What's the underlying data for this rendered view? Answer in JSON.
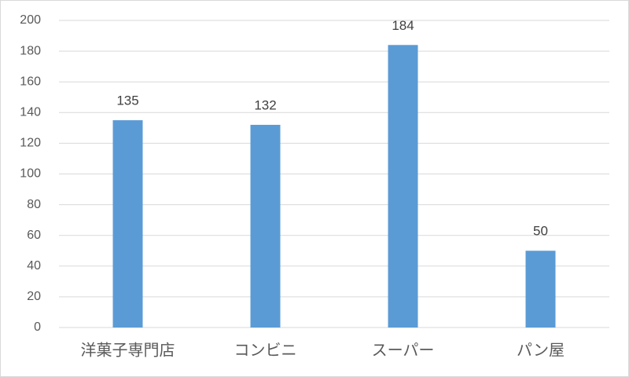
{
  "chart_data": {
    "type": "bar",
    "categories": [
      "洋菓子専門店",
      "コンビニ",
      "スーパー",
      "パン屋"
    ],
    "values": [
      135,
      132,
      184,
      50
    ],
    "color": "#5b9bd5",
    "ylim": [
      0,
      200
    ],
    "yticks": [
      0,
      20,
      40,
      60,
      80,
      100,
      120,
      140,
      160,
      180,
      200
    ],
    "grid": true
  }
}
